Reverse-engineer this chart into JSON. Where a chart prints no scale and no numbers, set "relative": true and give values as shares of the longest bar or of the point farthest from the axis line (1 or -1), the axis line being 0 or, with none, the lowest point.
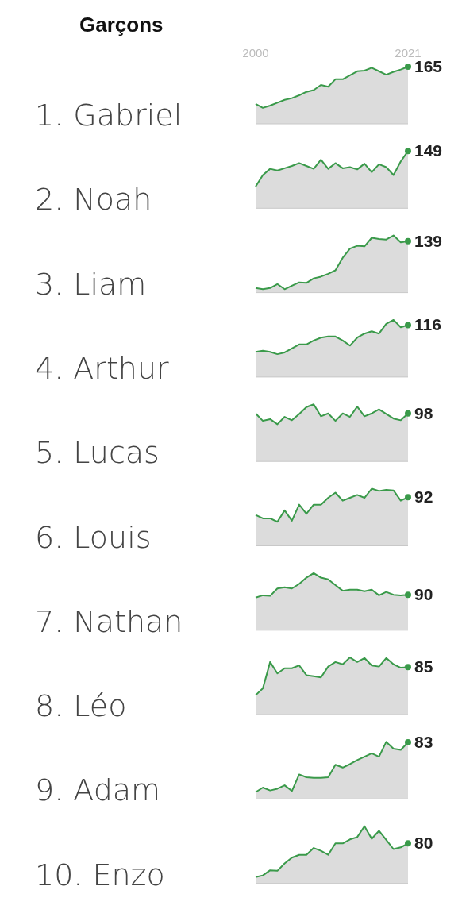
{
  "chart_data": [
    {
      "type": "area",
      "title": "1. Gabriel",
      "subtitle": "Garçons",
      "relative": true,
      "annotations": [
        "165"
      ],
      "x": [
        2000,
        2001,
        2002,
        2003,
        2004,
        2005,
        2006,
        2007,
        2008,
        2009,
        2010,
        2011,
        2012,
        2013,
        2014,
        2015,
        2016,
        2017,
        2018,
        2019,
        2020,
        2021
      ],
      "xlim": [
        2000,
        2021
      ],
      "xticks": [
        2000,
        2021
      ],
      "tick_labels": "x",
      "color": "#3a9a4a",
      "values": [
        0.35,
        0.28,
        0.32,
        0.37,
        0.42,
        0.45,
        0.5,
        0.56,
        0.59,
        0.68,
        0.65,
        0.78,
        0.78,
        0.85,
        0.92,
        0.93,
        0.98,
        0.92,
        0.86,
        0.91,
        0.95,
        1
      ]
    },
    {
      "type": "area",
      "title": "2. Noah",
      "relative": true,
      "annotations": [
        "149"
      ],
      "x": [
        2000,
        2001,
        2002,
        2003,
        2004,
        2005,
        2006,
        2007,
        2008,
        2009,
        2010,
        2011,
        2012,
        2013,
        2014,
        2015,
        2016,
        2017,
        2018,
        2019,
        2020,
        2021
      ],
      "xlim": [
        2000,
        2021
      ],
      "tick_labels": false,
      "color": "#3a9a4a",
      "values": [
        0.38,
        0.58,
        0.69,
        0.66,
        0.7,
        0.74,
        0.79,
        0.74,
        0.69,
        0.85,
        0.69,
        0.79,
        0.7,
        0.72,
        0.68,
        0.78,
        0.63,
        0.77,
        0.72,
        0.58,
        0.82,
        1
      ]
    },
    {
      "type": "area",
      "title": "3. Liam",
      "relative": true,
      "annotations": [
        "139"
      ],
      "x": [
        2000,
        2001,
        2002,
        2003,
        2004,
        2005,
        2006,
        2007,
        2008,
        2009,
        2010,
        2011,
        2012,
        2013,
        2014,
        2015,
        2016,
        2017,
        2018,
        2019,
        2020,
        2021
      ],
      "xlim": [
        2000,
        2021
      ],
      "tick_labels": false,
      "color": "#3a9a4a",
      "values": [
        0.08,
        0.06,
        0.08,
        0.15,
        0.06,
        0.12,
        0.18,
        0.17,
        0.25,
        0.28,
        0.33,
        0.39,
        0.61,
        0.77,
        0.82,
        0.81,
        0.96,
        0.94,
        0.93,
        1,
        0.88,
        0.9
      ]
    },
    {
      "type": "area",
      "title": "4. Arthur",
      "relative": true,
      "annotations": [
        "116"
      ],
      "x": [
        2000,
        2001,
        2002,
        2003,
        2004,
        2005,
        2006,
        2007,
        2008,
        2009,
        2010,
        2011,
        2012,
        2013,
        2014,
        2015,
        2016,
        2017,
        2018,
        2019,
        2020,
        2021
      ],
      "xlim": [
        2000,
        2021
      ],
      "tick_labels": false,
      "color": "#3a9a4a",
      "values": [
        0.44,
        0.46,
        0.44,
        0.4,
        0.43,
        0.5,
        0.57,
        0.57,
        0.64,
        0.69,
        0.71,
        0.71,
        0.64,
        0.55,
        0.69,
        0.76,
        0.8,
        0.76,
        0.93,
        1,
        0.87,
        0.91
      ]
    },
    {
      "type": "area",
      "title": "5. Lucas",
      "relative": true,
      "annotations": [
        "98"
      ],
      "x": [
        2000,
        2001,
        2002,
        2003,
        2004,
        2005,
        2006,
        2007,
        2008,
        2009,
        2010,
        2011,
        2012,
        2013,
        2014,
        2015,
        2016,
        2017,
        2018,
        2019,
        2020,
        2021
      ],
      "xlim": [
        2000,
        2021
      ],
      "tick_labels": false,
      "color": "#3a9a4a",
      "values": [
        0.84,
        0.71,
        0.74,
        0.65,
        0.78,
        0.72,
        0.83,
        0.95,
        1,
        0.79,
        0.84,
        0.71,
        0.84,
        0.78,
        0.96,
        0.79,
        0.84,
        0.91,
        0.83,
        0.75,
        0.72,
        0.84
      ]
    },
    {
      "type": "area",
      "title": "6. Louis",
      "relative": true,
      "annotations": [
        "92"
      ],
      "x": [
        2000,
        2001,
        2002,
        2003,
        2004,
        2005,
        2006,
        2007,
        2008,
        2009,
        2010,
        2011,
        2012,
        2013,
        2014,
        2015,
        2016,
        2017,
        2018,
        2019,
        2020,
        2021
      ],
      "xlim": [
        2000,
        2021
      ],
      "tick_labels": false,
      "color": "#3a9a4a",
      "values": [
        0.54,
        0.48,
        0.48,
        0.42,
        0.62,
        0.44,
        0.72,
        0.56,
        0.72,
        0.72,
        0.84,
        0.93,
        0.79,
        0.84,
        0.89,
        0.84,
        1,
        0.96,
        0.98,
        0.97,
        0.79,
        0.85
      ]
    },
    {
      "type": "area",
      "title": "7. Nathan",
      "relative": true,
      "annotations": [
        "90"
      ],
      "x": [
        2000,
        2001,
        2002,
        2003,
        2004,
        2005,
        2006,
        2007,
        2008,
        2009,
        2010,
        2011,
        2012,
        2013,
        2014,
        2015,
        2016,
        2017,
        2018,
        2019,
        2020,
        2021
      ],
      "xlim": [
        2000,
        2021
      ],
      "tick_labels": false,
      "color": "#3a9a4a",
      "values": [
        0.57,
        0.61,
        0.6,
        0.73,
        0.75,
        0.73,
        0.81,
        0.92,
        1,
        0.92,
        0.89,
        0.79,
        0.69,
        0.71,
        0.71,
        0.68,
        0.71,
        0.61,
        0.67,
        0.62,
        0.61,
        0.62
      ]
    },
    {
      "type": "area",
      "title": "8. Léo",
      "relative": true,
      "annotations": [
        "85"
      ],
      "x": [
        2000,
        2001,
        2002,
        2003,
        2004,
        2005,
        2006,
        2007,
        2008,
        2009,
        2010,
        2011,
        2012,
        2013,
        2014,
        2015,
        2016,
        2017,
        2018,
        2019,
        2020,
        2021
      ],
      "xlim": [
        2000,
        2021
      ],
      "tick_labels": false,
      "color": "#3a9a4a",
      "values": [
        0.34,
        0.46,
        0.92,
        0.72,
        0.81,
        0.81,
        0.86,
        0.69,
        0.67,
        0.65,
        0.84,
        0.92,
        0.88,
        1,
        0.92,
        0.99,
        0.86,
        0.84,
        0.99,
        0.88,
        0.82,
        0.83
      ]
    },
    {
      "type": "area",
      "title": "9. Adam",
      "relative": true,
      "annotations": [
        "83"
      ],
      "x": [
        2000,
        2001,
        2002,
        2003,
        2004,
        2005,
        2006,
        2007,
        2008,
        2009,
        2010,
        2011,
        2012,
        2013,
        2014,
        2015,
        2016,
        2017,
        2018,
        2019,
        2020,
        2021
      ],
      "xlim": [
        2000,
        2021
      ],
      "tick_labels": false,
      "color": "#3a9a4a",
      "values": [
        0.12,
        0.2,
        0.15,
        0.18,
        0.24,
        0.14,
        0.43,
        0.38,
        0.37,
        0.37,
        0.38,
        0.6,
        0.55,
        0.61,
        0.68,
        0.74,
        0.8,
        0.74,
        1,
        0.88,
        0.86,
        0.99
      ]
    },
    {
      "type": "area",
      "title": "10. Enzo",
      "relative": true,
      "annotations": [
        "80"
      ],
      "x": [
        2000,
        2001,
        2002,
        2003,
        2004,
        2005,
        2006,
        2007,
        2008,
        2009,
        2010,
        2011,
        2012,
        2013,
        2014,
        2015,
        2016,
        2017,
        2018,
        2019,
        2020,
        2021
      ],
      "xlim": [
        2000,
        2021
      ],
      "tick_labels": false,
      "color": "#3a9a4a",
      "values": [
        0.11,
        0.14,
        0.23,
        0.22,
        0.35,
        0.45,
        0.5,
        0.5,
        0.62,
        0.57,
        0.5,
        0.7,
        0.7,
        0.77,
        0.81,
        1,
        0.78,
        0.92,
        0.76,
        0.6,
        0.63,
        0.7
      ]
    }
  ]
}
